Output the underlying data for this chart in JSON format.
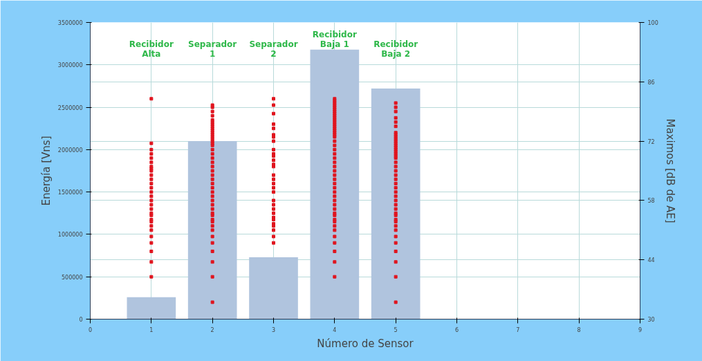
{
  "chart_data": {
    "type": "bar",
    "xlabel": "Número de Sensor",
    "ylabel": "Energía [Vns]",
    "y2label": "Maximos [dB de AE]",
    "x": [
      1,
      2,
      3,
      4,
      5
    ],
    "xlim": [
      0,
      9
    ],
    "xticks": [
      0,
      1,
      2,
      3,
      4,
      5,
      6,
      7,
      8,
      9
    ],
    "ylim": [
      0,
      3500000
    ],
    "yticks": [
      0,
      500000,
      1000000,
      1500000,
      2000000,
      2500000,
      3000000,
      3500000
    ],
    "y2lim": [
      30,
      100
    ],
    "y2ticks": [
      30,
      44,
      58,
      72,
      86,
      100
    ],
    "grid": true,
    "marker": "square",
    "series": [
      {
        "color": "#b0c4de",
        "values": [
          260000,
          2100000,
          730000,
          3180000,
          2720000
        ]
      },
      {
        "type": "scatter",
        "axis": "y2",
        "color": "#e0141e",
        "x": [
          1,
          1,
          1,
          1,
          1,
          1,
          1,
          1,
          1,
          1,
          1,
          1,
          1,
          1,
          1,
          1,
          1,
          1,
          1,
          1,
          1,
          1,
          1,
          1,
          1,
          1,
          1,
          1,
          1,
          2,
          2,
          2,
          2,
          2,
          2,
          2,
          2,
          2,
          2,
          2,
          2,
          2,
          2,
          2,
          2,
          2,
          2,
          2,
          2,
          2,
          2,
          2,
          2,
          2,
          2,
          2,
          2,
          2,
          2,
          2,
          2,
          2,
          2,
          2,
          2,
          2,
          2,
          2,
          2,
          2,
          2,
          2,
          2,
          3,
          3,
          3,
          3,
          3,
          3,
          3,
          3,
          3,
          3,
          3,
          3,
          3,
          3,
          3,
          3,
          3,
          3,
          3,
          3,
          3,
          3,
          3,
          3,
          3,
          3,
          3,
          3,
          3,
          3,
          4,
          4,
          4,
          4,
          4,
          4,
          4,
          4,
          4,
          4,
          4,
          4,
          4,
          4,
          4,
          4,
          4,
          4,
          4,
          4,
          4,
          4,
          4,
          4,
          4,
          4,
          4,
          4,
          4,
          4,
          4,
          4,
          4,
          4,
          4,
          4,
          4,
          4,
          4,
          4,
          4,
          4,
          4,
          4,
          4,
          4,
          4,
          5,
          5,
          5,
          5,
          5,
          5,
          5,
          5,
          5,
          5,
          5,
          5,
          5,
          5,
          5,
          5,
          5,
          5,
          5,
          5,
          5,
          5,
          5,
          5,
          5,
          5,
          5,
          5,
          5,
          5,
          5,
          5,
          5,
          5,
          5,
          5,
          5,
          5,
          5,
          5,
          5,
          5,
          5
        ],
        "values": [
          82,
          71.5,
          70,
          68,
          66,
          65,
          64,
          63,
          62,
          61,
          60,
          59,
          58,
          57,
          56,
          55,
          54.5,
          53.5,
          53,
          52,
          51,
          49.5,
          48,
          46,
          43.5,
          40,
          65.5,
          67,
          69,
          80.5,
          80,
          79,
          78,
          77,
          76,
          75,
          74,
          73,
          72,
          71,
          70,
          69,
          68,
          67,
          66,
          65,
          64,
          63,
          62,
          61,
          60,
          59,
          58,
          57,
          56,
          55,
          54.5,
          53.5,
          53,
          52,
          51,
          49.5,
          48,
          46,
          43.5,
          40,
          34,
          76.5,
          75.5,
          74.5,
          73.5,
          72.5,
          71.5,
          82,
          80.5,
          78.5,
          76,
          75,
          73.5,
          73,
          72,
          70,
          69,
          68.5,
          67.5,
          66.5,
          66,
          64,
          63,
          62,
          61,
          60,
          58,
          57,
          56,
          55,
          54,
          53.5,
          52.5,
          52,
          51,
          49.5,
          48,
          82,
          81,
          80,
          79,
          78,
          77,
          76,
          75,
          74,
          73,
          72,
          71,
          70,
          69,
          68,
          67,
          66,
          65,
          64,
          63,
          62,
          61,
          60,
          59,
          58,
          57,
          56,
          55,
          54.5,
          53.5,
          53,
          52,
          51,
          49.5,
          48,
          46,
          43.5,
          40,
          81.5,
          80.5,
          79.5,
          78.5,
          77.5,
          76.5,
          75.5,
          74.5,
          73.5,
          81,
          80,
          79,
          77.5,
          76.5,
          75.5,
          74,
          73,
          72,
          71,
          70,
          69,
          68,
          67,
          66,
          65,
          64,
          63,
          62,
          61,
          60,
          59,
          58,
          57,
          56,
          55,
          54.5,
          53.5,
          53,
          52,
          51,
          49.5,
          48,
          46,
          43.5,
          40,
          34,
          73.5,
          72.5,
          71.5,
          70.5,
          69.5,
          68.5
        ]
      }
    ],
    "annotations": [
      "Recibidor\nAlta",
      "Separador\n1",
      "Separador\n2",
      "Recibidor\nBaja 1",
      "Recibidor\nBaja 2"
    ]
  }
}
